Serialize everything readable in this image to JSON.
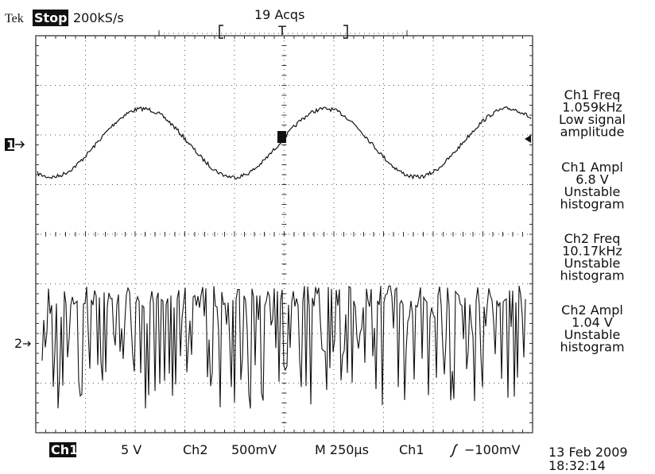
{
  "header": {
    "brand": "Tek",
    "state": "Stop:",
    "sample_rate": "200kS/s",
    "acquisitions": "19 Acqs",
    "trigger_position": "T"
  },
  "markers": {
    "ch1": "1",
    "ch2": "2"
  },
  "measurements": [
    {
      "lines": [
        "Ch1 Freq",
        "1.059kHz",
        "Low signal",
        "amplitude"
      ]
    },
    {
      "lines": [
        "Ch1 Ampl",
        "6.8 V",
        "Unstable",
        "histogram"
      ]
    },
    {
      "lines": [
        "Ch2 Freq",
        "10.17kHz",
        "Unstable",
        "histogram"
      ]
    },
    {
      "lines": [
        "Ch2 Ampl",
        "1.04 V",
        "Unstable",
        "histogram"
      ]
    }
  ],
  "status_bar": {
    "ch1": "Ch1",
    "ch1_scale": "5 V",
    "ch2": "Ch2",
    "ch2_scale": "500mV",
    "timebase": "M 250µs",
    "trigger_source": "Ch1",
    "trigger_level": "−100mV"
  },
  "timestamp": {
    "date": "13 Feb 2009",
    "time": "18:32:14"
  }
}
